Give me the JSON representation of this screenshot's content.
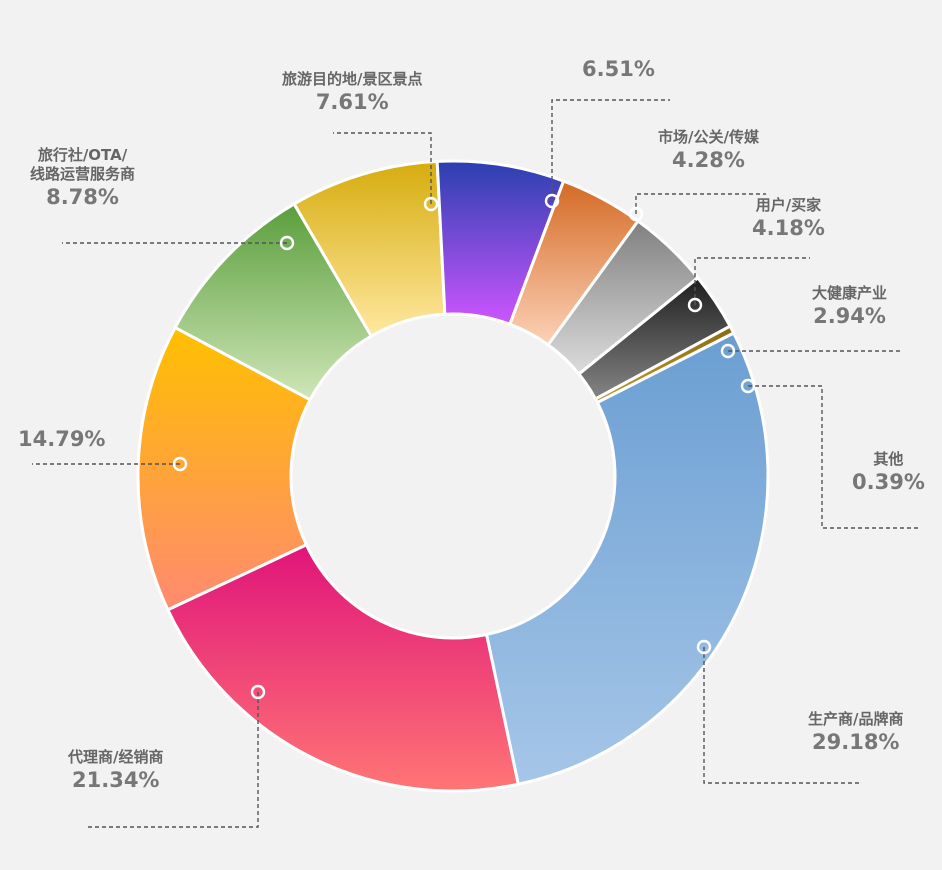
{
  "chart_data": {
    "type": "pie",
    "variant": "donut",
    "categories": [
      "生产商/品牌商",
      "代理商/经销商",
      "",
      "旅行社/OTA/线路运营服务商",
      "旅游目的地/景区景点",
      "",
      "市场/公关/传媒",
      "用户/买家",
      "大健康产业",
      "其他"
    ],
    "values": [
      29.18,
      21.34,
      14.79,
      8.78,
      7.61,
      6.51,
      4.28,
      4.18,
      2.94,
      0.39
    ],
    "value_labels": [
      "29.18%",
      "21.34%",
      "14.79%",
      "8.78%",
      "7.61%",
      "6.51%",
      "4.28%",
      "4.18%",
      "2.94%",
      "0.39%"
    ],
    "label_lines": [
      [
        "生产商/品牌商"
      ],
      [
        "代理商/经销商"
      ],
      [],
      [
        "旅行社/OTA/",
        "线路运营服务商"
      ],
      [
        "旅游目的地/景区景点"
      ],
      [],
      [
        "市场/公关/传媒"
      ],
      [
        "用户/买家"
      ],
      [
        "大健康产业"
      ],
      [
        "其他"
      ]
    ],
    "colors": [
      [
        "#6a9ed2",
        "#a6c6e8"
      ],
      [
        "#e0147a",
        "#ff7575"
      ],
      [
        "#ffc000",
        "#ff8a70"
      ],
      [
        "#5a9e3c",
        "#cfe6b8"
      ],
      [
        "#d6ac0e",
        "#ffe8a0"
      ],
      [
        "#2a40b0",
        "#cc55ff"
      ],
      [
        "#d46a24",
        "#fcd2b8"
      ],
      [
        "#808080",
        "#dcdcdc"
      ],
      [
        "#1e1e1e",
        "#858585"
      ],
      [
        "#8a6a10",
        "#c49a2e"
      ]
    ],
    "start_direction": "clockwise from about 1 o'clock",
    "legend": "none (leader-line labels)"
  }
}
